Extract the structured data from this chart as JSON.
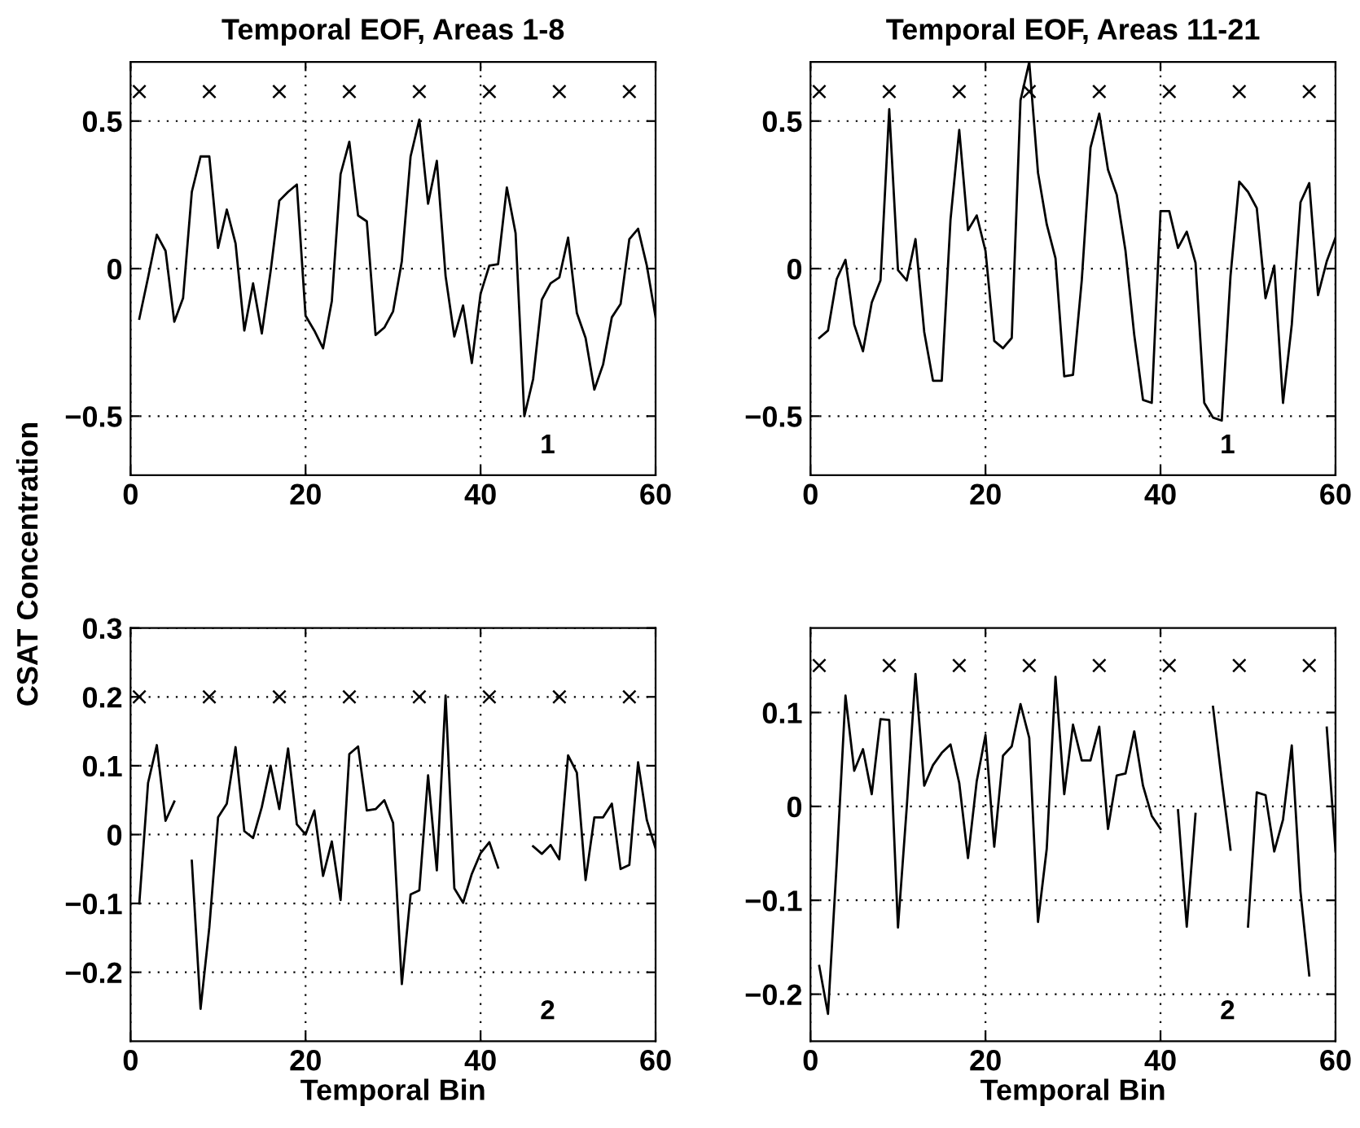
{
  "chart_data": [
    {
      "type": "line",
      "title": "Temporal EOF, Areas 1-8",
      "annotations": [
        "1"
      ],
      "xlim": [
        0,
        60
      ],
      "xticks": [
        0,
        20,
        40,
        60
      ],
      "ylim": [
        -0.7,
        0.7
      ],
      "yticks": [
        {
          "value": -0.5,
          "label": "−0.5"
        },
        0,
        0.5
      ],
      "grid": true,
      "series": [
        {
          "color": "#000000",
          "x": [
            1,
            2,
            3,
            4,
            5,
            6,
            7,
            8,
            9,
            10,
            11,
            12,
            13,
            14,
            15,
            16,
            17,
            18,
            19,
            20,
            21,
            22,
            23,
            24,
            25,
            26,
            27,
            28,
            29,
            30,
            31,
            32,
            33,
            34,
            35,
            36,
            37,
            38,
            39,
            40,
            41,
            42,
            43,
            44,
            45,
            46,
            47,
            48,
            49,
            50,
            51,
            52,
            53,
            54,
            55,
            56,
            57,
            58,
            59,
            60
          ],
          "values": [
            -0.17,
            -0.03,
            0.115,
            0.06,
            -0.18,
            -0.1,
            0.26,
            0.38,
            0.38,
            0.07,
            0.2,
            0.085,
            -0.21,
            -0.05,
            -0.22,
            -0.01,
            0.23,
            0.26,
            0.285,
            -0.16,
            -0.21,
            -0.27,
            -0.11,
            0.32,
            0.43,
            0.18,
            0.16,
            -0.225,
            -0.2,
            -0.145,
            0.025,
            0.38,
            0.505,
            0.22,
            0.365,
            -0.025,
            -0.23,
            -0.125,
            -0.32,
            -0.085,
            0.01,
            0.015,
            0.275,
            0.12,
            -0.5,
            -0.375,
            -0.105,
            -0.05,
            -0.03,
            0.105,
            -0.15,
            -0.235,
            -0.41,
            -0.325,
            -0.165,
            -0.12,
            0.1,
            0.135,
            0.01,
            -0.165
          ]
        },
        {
          "type": "scatter",
          "marker": "cross",
          "color": "#000000",
          "x": [
            1,
            9,
            17,
            25,
            33,
            41,
            49,
            57
          ],
          "values": [
            0.6,
            0.6,
            0.6,
            0.6,
            0.6,
            0.6,
            0.6,
            0.6
          ]
        }
      ]
    },
    {
      "type": "line",
      "title": "Temporal EOF, Areas 11-21",
      "annotations": [
        "1"
      ],
      "xlim": [
        0,
        60
      ],
      "xticks": [
        0,
        20,
        40,
        60
      ],
      "ylim": [
        -0.7,
        0.7
      ],
      "yticks": [
        {
          "value": -0.5,
          "label": "−0.5"
        },
        0,
        0.5
      ],
      "grid": true,
      "series": [
        {
          "color": "#000000",
          "x": [
            1,
            2,
            3,
            4,
            5,
            6,
            7,
            8,
            9,
            10,
            11,
            12,
            13,
            14,
            15,
            16,
            17,
            18,
            19,
            20,
            21,
            22,
            23,
            24,
            25,
            26,
            27,
            28,
            29,
            30,
            31,
            32,
            33,
            34,
            35,
            36,
            37,
            38,
            39,
            40,
            41,
            42,
            43,
            44,
            45,
            46,
            47,
            48,
            49,
            50,
            51,
            52,
            53,
            54,
            55,
            56,
            57,
            58,
            59,
            60
          ],
          "values": [
            -0.235,
            -0.21,
            -0.035,
            0.03,
            -0.19,
            -0.28,
            -0.115,
            -0.04,
            0.54,
            -0.005,
            -0.04,
            0.1,
            -0.215,
            -0.38,
            -0.38,
            0.165,
            0.47,
            0.13,
            0.18,
            0.06,
            -0.245,
            -0.27,
            -0.235,
            0.57,
            0.7,
            0.325,
            0.15,
            0.035,
            -0.365,
            -0.36,
            -0.04,
            0.41,
            0.525,
            0.335,
            0.25,
            0.06,
            -0.225,
            -0.445,
            -0.455,
            0.195,
            0.195,
            0.07,
            0.125,
            0.02,
            -0.455,
            -0.505,
            -0.515,
            -0.025,
            0.295,
            0.26,
            0.205,
            -0.1,
            0.01,
            -0.455,
            -0.19,
            0.225,
            0.29,
            -0.09,
            0.025,
            0.105
          ]
        },
        {
          "type": "scatter",
          "marker": "cross",
          "color": "#000000",
          "x": [
            1,
            9,
            17,
            25,
            33,
            41,
            49,
            57
          ],
          "values": [
            0.6,
            0.6,
            0.6,
            0.6,
            0.6,
            0.6,
            0.6,
            0.6
          ]
        }
      ]
    },
    {
      "type": "line",
      "xlabel": "Temporal Bin",
      "ylabel": "CSAT Concentration",
      "annotations": [
        "2"
      ],
      "xlim": [
        0,
        60
      ],
      "xticks": [
        0,
        20,
        40,
        60
      ],
      "ylim": [
        -0.3,
        0.3
      ],
      "yticks": [
        {
          "value": -0.2,
          "label": "−0.2"
        },
        {
          "value": -0.1,
          "label": "−0.1"
        },
        0,
        0.1,
        0.2,
        0.3
      ],
      "grid": true,
      "series": [
        {
          "color": "#000000",
          "x": [
            1,
            2,
            3,
            4,
            5,
            6,
            7,
            8,
            9,
            10,
            11,
            12,
            13,
            14,
            15,
            16,
            17,
            18,
            19,
            20,
            21,
            22,
            23,
            24,
            25,
            26,
            27,
            28,
            29,
            30,
            31,
            32,
            33,
            34,
            35,
            36,
            37,
            38,
            39,
            40,
            41,
            42,
            43,
            44,
            45,
            46,
            47,
            48,
            49,
            50,
            51,
            52,
            53,
            54,
            55,
            56,
            57,
            58,
            59,
            60
          ],
          "values": [
            -0.1,
            0.075,
            0.13,
            0.02,
            0.048,
            null,
            -0.038,
            -0.253,
            -0.135,
            0.025,
            0.045,
            0.127,
            0.005,
            -0.005,
            0.04,
            0.1,
            0.037,
            0.125,
            0.015,
            0.0,
            0.035,
            -0.06,
            -0.01,
            -0.095,
            0.117,
            0.128,
            0.035,
            0.037,
            0.05,
            0.017,
            -0.217,
            -0.087,
            -0.081,
            0.086,
            -0.052,
            0.202,
            -0.078,
            -0.099,
            -0.057,
            -0.027,
            -0.011,
            -0.048,
            null,
            null,
            null,
            -0.017,
            -0.028,
            -0.015,
            -0.036,
            0.115,
            0.09,
            -0.066,
            0.025,
            0.025,
            0.045,
            -0.05,
            -0.044,
            0.105,
            0.021,
            -0.02
          ]
        },
        {
          "type": "scatter",
          "marker": "cross",
          "color": "#000000",
          "x": [
            1,
            9,
            17,
            25,
            33,
            41,
            49,
            57
          ],
          "values": [
            0.2,
            0.2,
            0.2,
            0.2,
            0.2,
            0.2,
            0.2,
            0.2
          ]
        }
      ]
    },
    {
      "type": "line",
      "xlabel": "Temporal Bin",
      "annotations": [
        "2"
      ],
      "xlim": [
        0,
        60
      ],
      "xticks": [
        0,
        20,
        40,
        60
      ],
      "ylim": [
        -0.25,
        0.19
      ],
      "yticks": [
        {
          "value": -0.2,
          "label": "−0.2"
        },
        {
          "value": -0.1,
          "label": "−0.1"
        },
        0,
        0.1
      ],
      "grid": true,
      "series": [
        {
          "color": "#000000",
          "x": [
            1,
            2,
            3,
            4,
            5,
            6,
            7,
            8,
            9,
            10,
            11,
            12,
            13,
            14,
            15,
            16,
            17,
            18,
            19,
            20,
            21,
            22,
            23,
            24,
            25,
            26,
            27,
            28,
            29,
            30,
            31,
            32,
            33,
            34,
            35,
            36,
            37,
            38,
            39,
            40,
            41,
            42,
            43,
            44,
            45,
            46,
            47,
            48,
            49,
            50,
            51,
            52,
            53,
            54,
            55,
            56,
            57,
            58,
            59,
            60
          ],
          "values": [
            -0.17,
            -0.221,
            -0.06,
            0.118,
            0.038,
            0.061,
            0.013,
            0.093,
            0.092,
            -0.129,
            -0.001,
            0.141,
            0.022,
            0.044,
            0.057,
            0.066,
            0.025,
            -0.055,
            0.027,
            0.076,
            -0.043,
            0.054,
            0.064,
            0.109,
            0.073,
            -0.123,
            -0.045,
            0.138,
            0.013,
            0.087,
            0.049,
            0.049,
            0.085,
            -0.024,
            0.033,
            0.035,
            0.08,
            0.022,
            -0.01,
            -0.024,
            null,
            -0.004,
            -0.128,
            -0.008,
            null,
            0.106,
            0.028,
            -0.046,
            null,
            -0.128,
            0.015,
            0.012,
            -0.048,
            -0.014,
            0.065,
            -0.091,
            -0.18,
            null,
            0.084,
            -0.048
          ]
        },
        {
          "type": "scatter",
          "marker": "cross",
          "color": "#000000",
          "x": [
            1,
            9,
            17,
            25,
            33,
            41,
            49,
            57
          ],
          "values": [
            0.15,
            0.15,
            0.15,
            0.15,
            0.15,
            0.15,
            0.15,
            0.15
          ]
        }
      ]
    }
  ]
}
